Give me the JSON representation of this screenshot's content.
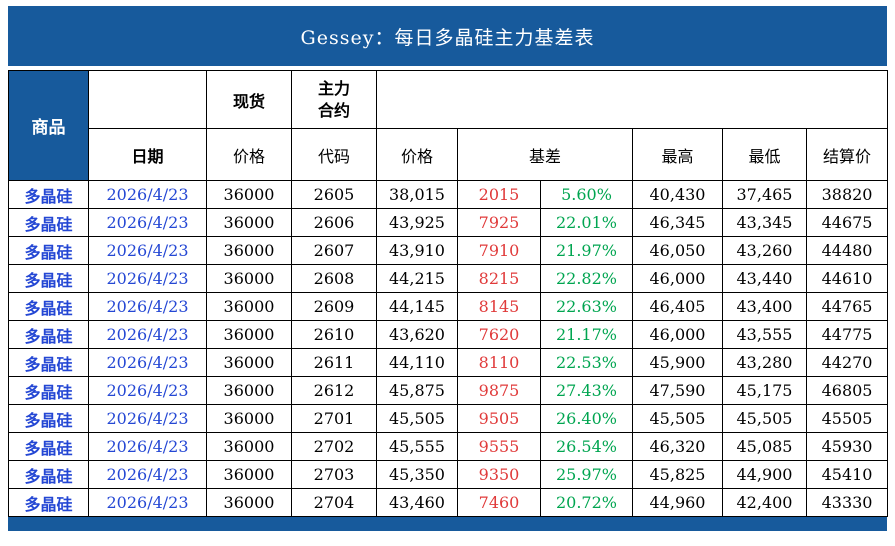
{
  "title": "Gessey：每日多晶硅主力基差表",
  "colors": {
    "header_bg": "#175A9C",
    "blue_text": "#2447D4",
    "red_text": "#E03A3A",
    "green_text": "#00A550",
    "border": "#000000"
  },
  "header": {
    "commodity": "商品",
    "date": "日期",
    "spot": "现货",
    "main_contract": "主力\n合约",
    "spot_price": "价格",
    "code": "代码",
    "price": "价格",
    "basis": "基差",
    "high": "最高",
    "low": "最低",
    "settlement": "结算价"
  },
  "chart_data": {
    "type": "table",
    "title": "Gessey：每日多晶硅主力基差表",
    "columns": [
      "商品",
      "日期",
      "现货价格",
      "主力合约代码",
      "价格",
      "基差",
      "基差百分比",
      "最高",
      "最低",
      "结算价"
    ],
    "rows": [
      {
        "commodity": "多晶硅",
        "date": "2026/4/23",
        "spot_price": "36000",
        "code": "2605",
        "price": "38,015",
        "basis": "2015",
        "basis_pct": "5.60%",
        "high": "40,430",
        "low": "37,465",
        "settle": "38820"
      },
      {
        "commodity": "多晶硅",
        "date": "2026/4/23",
        "spot_price": "36000",
        "code": "2606",
        "price": "43,925",
        "basis": "7925",
        "basis_pct": "22.01%",
        "high": "46,345",
        "low": "43,345",
        "settle": "44675"
      },
      {
        "commodity": "多晶硅",
        "date": "2026/4/23",
        "spot_price": "36000",
        "code": "2607",
        "price": "43,910",
        "basis": "7910",
        "basis_pct": "21.97%",
        "high": "46,050",
        "low": "43,260",
        "settle": "44480"
      },
      {
        "commodity": "多晶硅",
        "date": "2026/4/23",
        "spot_price": "36000",
        "code": "2608",
        "price": "44,215",
        "basis": "8215",
        "basis_pct": "22.82%",
        "high": "46,000",
        "low": "43,440",
        "settle": "44610"
      },
      {
        "commodity": "多晶硅",
        "date": "2026/4/23",
        "spot_price": "36000",
        "code": "2609",
        "price": "44,145",
        "basis": "8145",
        "basis_pct": "22.63%",
        "high": "46,405",
        "low": "43,400",
        "settle": "44765"
      },
      {
        "commodity": "多晶硅",
        "date": "2026/4/23",
        "spot_price": "36000",
        "code": "2610",
        "price": "43,620",
        "basis": "7620",
        "basis_pct": "21.17%",
        "high": "46,000",
        "low": "43,555",
        "settle": "44775"
      },
      {
        "commodity": "多晶硅",
        "date": "2026/4/23",
        "spot_price": "36000",
        "code": "2611",
        "price": "44,110",
        "basis": "8110",
        "basis_pct": "22.53%",
        "high": "45,900",
        "low": "43,280",
        "settle": "44270"
      },
      {
        "commodity": "多晶硅",
        "date": "2026/4/23",
        "spot_price": "36000",
        "code": "2612",
        "price": "45,875",
        "basis": "9875",
        "basis_pct": "27.43%",
        "high": "47,590",
        "low": "45,175",
        "settle": "46805"
      },
      {
        "commodity": "多晶硅",
        "date": "2026/4/23",
        "spot_price": "36000",
        "code": "2701",
        "price": "45,505",
        "basis": "9505",
        "basis_pct": "26.40%",
        "high": "45,505",
        "low": "45,505",
        "settle": "45505"
      },
      {
        "commodity": "多晶硅",
        "date": "2026/4/23",
        "spot_price": "36000",
        "code": "2702",
        "price": "45,555",
        "basis": "9555",
        "basis_pct": "26.54%",
        "high": "46,320",
        "low": "45,085",
        "settle": "45930"
      },
      {
        "commodity": "多晶硅",
        "date": "2026/4/23",
        "spot_price": "36000",
        "code": "2703",
        "price": "45,350",
        "basis": "9350",
        "basis_pct": "25.97%",
        "high": "45,825",
        "low": "44,900",
        "settle": "45410"
      },
      {
        "commodity": "多晶硅",
        "date": "2026/4/23",
        "spot_price": "36000",
        "code": "2704",
        "price": "43,460",
        "basis": "7460",
        "basis_pct": "20.72%",
        "high": "44,960",
        "low": "42,400",
        "settle": "43330"
      }
    ]
  }
}
